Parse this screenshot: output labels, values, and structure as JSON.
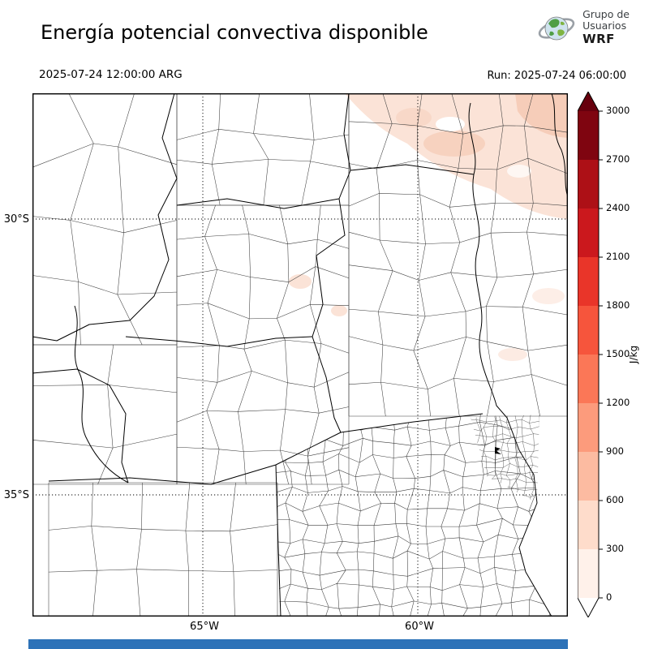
{
  "header": {
    "title": "Energía potencial convectiva disponible",
    "valid_time": "2025-07-24 12:00:00 ARG",
    "run_label": "Run: 2025-07-24 06:00:00",
    "logo": {
      "line1": "Grupo de",
      "line2": "Usuarios",
      "line3": "WRF"
    }
  },
  "map": {
    "yticks": [
      "30°S",
      "35°S"
    ],
    "xticks": [
      "65°W",
      "60°W"
    ]
  },
  "colorbar": {
    "unit": "J/kg",
    "tick_labels": [
      "3000",
      "2700",
      "2400",
      "2100",
      "1800",
      "1500",
      "1200",
      "900",
      "600",
      "300",
      "0"
    ],
    "colors_top_to_bottom": [
      "#67000d",
      "#7f0510",
      "#ad1016",
      "#cb181d",
      "#e93529",
      "#f6553c",
      "#fb7757",
      "#fc9b7c",
      "#fcbba1",
      "#fedccb",
      "#fff1ea",
      "#ffffff"
    ]
  },
  "cape_shading": {
    "light": "#fbe3d7",
    "medium": "#f6cdb9"
  },
  "footer_bar_color": "#2d72b8",
  "chart_data": {
    "type": "heatmap",
    "title": "Energía potencial convectiva disponible",
    "valid_time": "2025-07-24 12:00:00 ARG",
    "run_time": "2025-07-24 06:00:00",
    "unit": "J/kg",
    "levels": [
      0,
      300,
      600,
      900,
      1200,
      1500,
      1800,
      2100,
      2400,
      2700,
      3000
    ],
    "x_ticks": [
      "65°W",
      "60°W"
    ],
    "y_ticks": [
      "30°S",
      "35°S"
    ],
    "legend_position": "right-vertical-colorbar",
    "observed_values": "CAPE near 0 J/kg over most of the domain; light shading of roughly 0-600 J/kg over the northeast corner of the map, with a few faint patches near the center"
  }
}
